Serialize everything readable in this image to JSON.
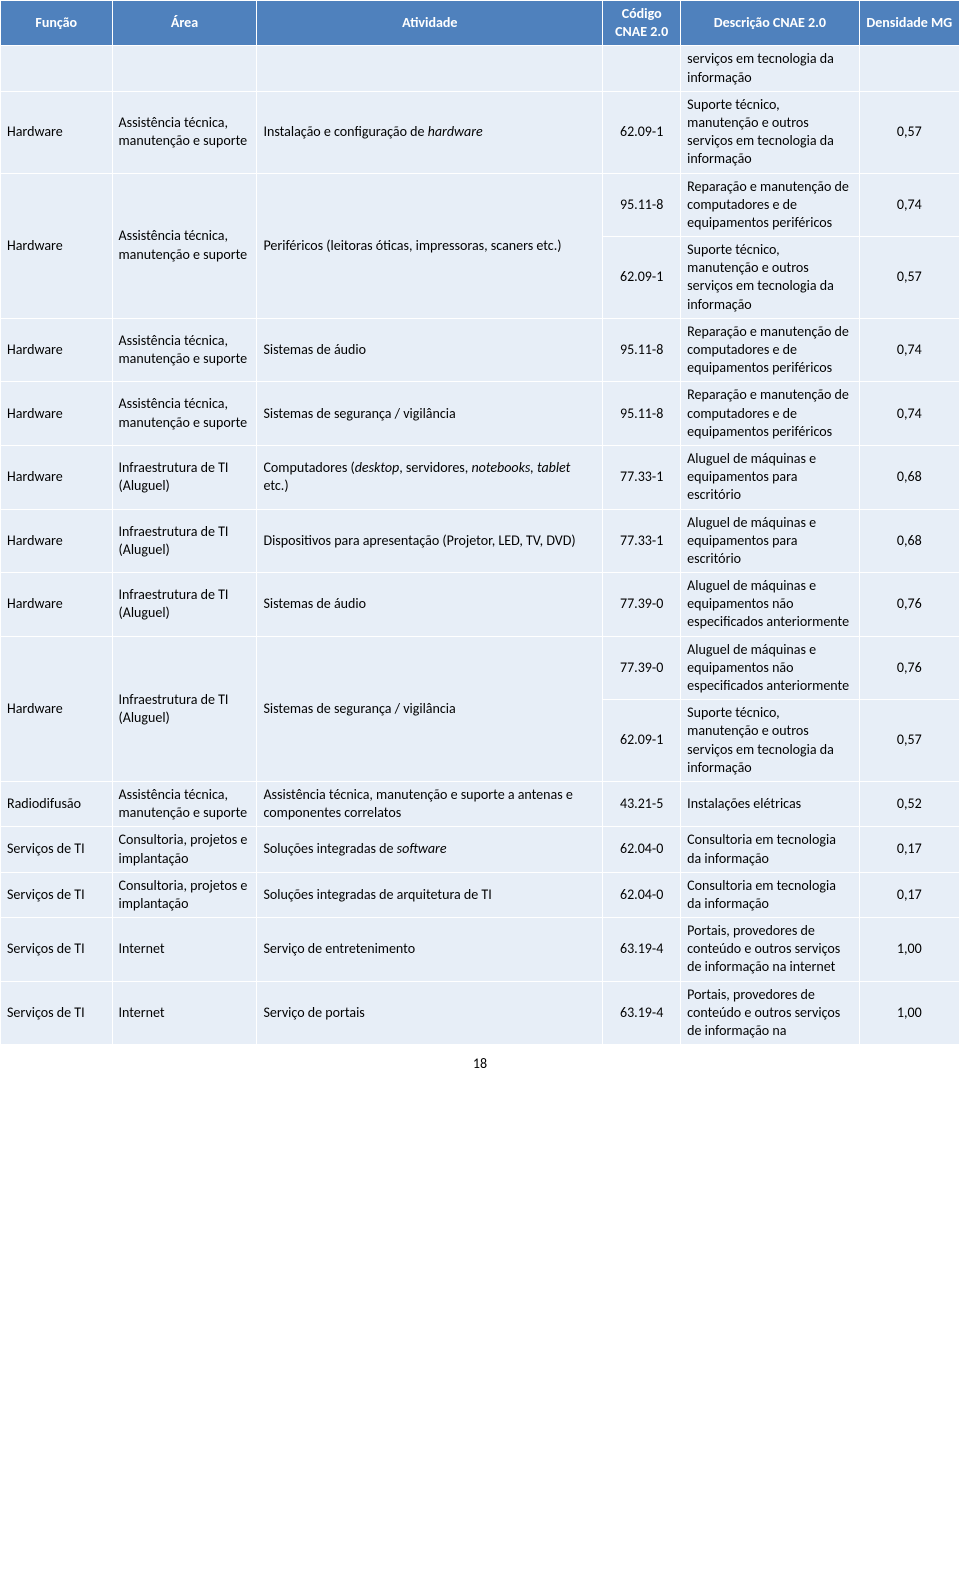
{
  "columns": {
    "funcao": "Função",
    "area": "Área",
    "atividade": "Atividade",
    "codigo": "Código CNAE 2.0",
    "descricao": "Descrição CNAE 2.0",
    "densidade": "Densidade MG"
  },
  "spill": {
    "desc": "serviços em tecnologia da informação"
  },
  "rows": [
    {
      "funcao": "Hardware",
      "area": "Assistência técnica, manutenção e suporte",
      "atividade": "Instalação e configuração de hardware",
      "atividade_has_italic": true,
      "atividade_pre": "Instalação e configuração de ",
      "atividade_it": "hardware",
      "codigo": "62.09-1",
      "desc": "Suporte técnico, manutenção e outros serviços em tecnologia da informação",
      "dens": "0,57"
    },
    {
      "funcao": "Hardware",
      "area": "Assistência técnica, manutenção e suporte",
      "atividade": "Periféricos (leitoras óticas, impressoras, scaners etc.)",
      "sub": [
        {
          "codigo": "95.11-8",
          "desc": "Reparação e manutenção de computadores e de equipamentos periféricos",
          "dens": "0,74"
        },
        {
          "codigo": "62.09-1",
          "desc": "Suporte técnico, manutenção e outros serviços em tecnologia da informação",
          "dens": "0,57"
        }
      ]
    },
    {
      "funcao": "Hardware",
      "area": "Assistência técnica, manutenção e suporte",
      "atividade": "Sistemas de áudio",
      "codigo": "95.11-8",
      "desc": "Reparação e manutenção de computadores e de equipamentos periféricos",
      "dens": "0,74"
    },
    {
      "funcao": "Hardware",
      "area": "Assistência técnica, manutenção e suporte",
      "atividade": "Sistemas de segurança / vigilância",
      "codigo": "95.11-8",
      "desc": "Reparação e manutenção de computadores e de equipamentos periféricos",
      "dens": "0,74"
    },
    {
      "funcao": "Hardware",
      "area": "Infraestrutura de TI (Aluguel)",
      "atividade_pre": "Computadores (",
      "atividade_it": "desktop",
      "atividade_mid": ", servidores, ",
      "atividade_it2": "notebooks, tablet",
      "atividade_post": " etc.)",
      "atividade_has_italic": true,
      "codigo": "77.33-1",
      "desc": "Aluguel de máquinas e equipamentos para escritório",
      "dens": "0,68"
    },
    {
      "funcao": "Hardware",
      "area": "Infraestrutura de TI (Aluguel)",
      "atividade": "Dispositivos para apresentação (Projetor, LED, TV, DVD)",
      "codigo": "77.33-1",
      "desc": "Aluguel de máquinas e equipamentos para escritório",
      "dens": "0,68"
    },
    {
      "funcao": "Hardware",
      "area": "Infraestrutura de TI (Aluguel)",
      "atividade": "Sistemas de áudio",
      "codigo": "77.39-0",
      "desc": "Aluguel de máquinas e equipamentos não especificados anteriormente",
      "dens": "0,76"
    },
    {
      "funcao": "Hardware",
      "area": "Infraestrutura de TI (Aluguel)",
      "atividade": "Sistemas de segurança / vigilância",
      "sub": [
        {
          "codigo": "77.39-0",
          "desc": "Aluguel de máquinas e equipamentos não especificados anteriormente",
          "dens": "0,76"
        },
        {
          "codigo": "62.09-1",
          "desc": "Suporte técnico, manutenção e outros serviços em tecnologia da informação",
          "dens": "0,57"
        }
      ]
    },
    {
      "funcao": "Radiodifusão",
      "area": "Assistência técnica, manutenção e suporte",
      "atividade": "Assistência técnica, manutenção e suporte a antenas e componentes correlatos",
      "codigo": "43.21-5",
      "desc": "Instalações elétricas",
      "dens": "0,52"
    },
    {
      "funcao": "Serviços de TI",
      "area": "Consultoria, projetos e implantação",
      "atividade_pre": "Soluções integradas de ",
      "atividade_it": "software",
      "atividade_has_italic": true,
      "codigo": "62.04-0",
      "desc": "Consultoria em tecnologia da informação",
      "dens": "0,17"
    },
    {
      "funcao": "Serviços de TI",
      "area": "Consultoria, projetos e implantação",
      "atividade": "Soluções integradas de arquitetura de TI",
      "codigo": "62.04-0",
      "desc": "Consultoria em tecnologia da informação",
      "dens": "0,17"
    },
    {
      "funcao": "Serviços de TI",
      "area": "Internet",
      "atividade": "Serviço de entretenimento",
      "codigo": "63.19-4",
      "desc": "Portais, provedores de conteúdo e outros serviços de informação na internet",
      "dens": "1,00"
    },
    {
      "funcao": "Serviços de TI",
      "area": "Internet",
      "atividade": "Serviço de portais",
      "codigo": "63.19-4",
      "desc": "Portais, provedores de conteúdo e outros serviços de informação na",
      "dens": "1,00"
    }
  ],
  "page": "18"
}
